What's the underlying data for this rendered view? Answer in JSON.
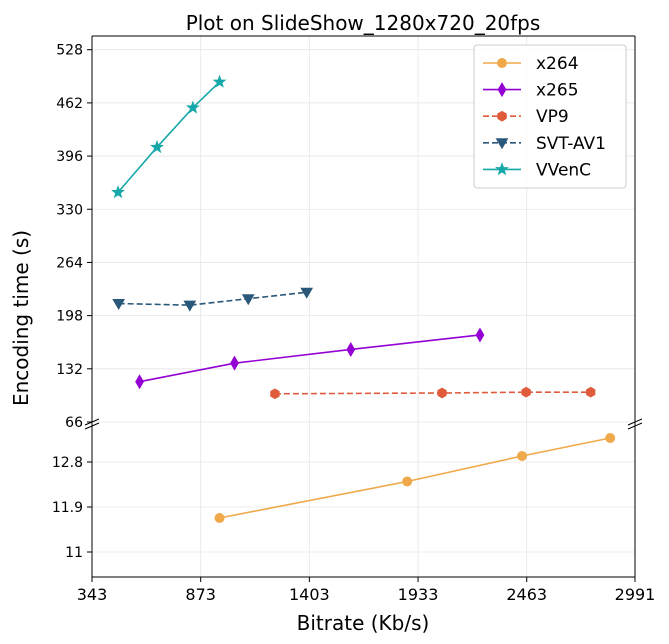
{
  "chart_data": {
    "type": "line",
    "title": "Plot on SlideShow_1280x720_20fps",
    "xlabel": "Bitrate (Kb/s)",
    "ylabel": "Encoding time (s)",
    "x_ticks": [
      "343",
      "873",
      "1403",
      "1933",
      "2463",
      "2991"
    ],
    "xlim": [
      343,
      2991
    ],
    "upper_panel": {
      "ylim": [
        66,
        545
      ],
      "y_ticks": [
        "66",
        "132",
        "198",
        "264",
        "330",
        "396",
        "462",
        "528"
      ]
    },
    "lower_panel": {
      "ylim": [
        10.5,
        13.6
      ],
      "y_ticks": [
        "11",
        "11.9",
        "12.8"
      ]
    },
    "grid": true,
    "legend_position": "top-right",
    "series": [
      {
        "name": "x264",
        "panel": "lower",
        "color": "#f0a94a",
        "marker": "circle",
        "dash": "solid",
        "x": [
          965,
          1880,
          2440,
          2870
        ],
        "y": [
          11.68,
          12.41,
          12.92,
          13.28
        ]
      },
      {
        "name": "x265",
        "panel": "upper",
        "color": "#9400d3",
        "marker": "thin-diamond",
        "dash": "solid",
        "x": [
          575,
          1038,
          1605,
          2235
        ],
        "y": [
          116,
          139,
          156,
          174
        ]
      },
      {
        "name": "VP9",
        "panel": "upper",
        "color": "#e05a3c",
        "marker": "hexagon",
        "dash": "dashed",
        "x": [
          1235,
          2050,
          2460,
          2775
        ],
        "y": [
          101,
          102,
          103,
          103
        ]
      },
      {
        "name": "SVT-AV1",
        "panel": "upper",
        "color": "#2a587a",
        "marker": "triangle-down",
        "dash": "dashed",
        "x": [
          473,
          820,
          1105,
          1390
        ],
        "y": [
          213,
          211,
          219,
          227
        ]
      },
      {
        "name": "VVenC",
        "panel": "upper",
        "color": "#16a8a8",
        "marker": "star",
        "dash": "solid",
        "x": [
          470,
          660,
          835,
          965
        ],
        "y": [
          351,
          407,
          456,
          488
        ]
      }
    ]
  }
}
